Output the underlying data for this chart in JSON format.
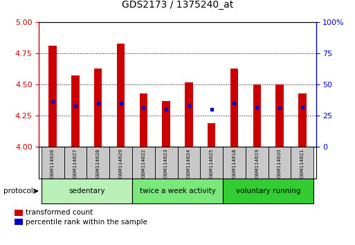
{
  "title": "GDS2173 / 1375240_at",
  "samples": [
    "GSM114626",
    "GSM114627",
    "GSM114628",
    "GSM114629",
    "GSM114622",
    "GSM114623",
    "GSM114624",
    "GSM114625",
    "GSM114618",
    "GSM114619",
    "GSM114620",
    "GSM114621"
  ],
  "red_values": [
    4.81,
    4.57,
    4.63,
    4.83,
    4.43,
    4.37,
    4.52,
    4.19,
    4.63,
    4.5,
    4.5,
    4.43
  ],
  "blue_values": [
    4.36,
    4.33,
    4.35,
    4.35,
    4.31,
    4.3,
    4.33,
    4.3,
    4.35,
    4.32,
    4.31,
    4.32
  ],
  "ylim_left": [
    4.0,
    5.0
  ],
  "ylim_right": [
    0,
    100
  ],
  "yticks_left": [
    4.0,
    4.25,
    4.5,
    4.75,
    5.0
  ],
  "yticks_right": [
    0,
    25,
    50,
    75,
    100
  ],
  "group_labels": [
    "sedentary",
    "twice a week activity",
    "voluntary running"
  ],
  "group_starts": [
    0,
    4,
    8
  ],
  "group_ends": [
    4,
    8,
    12
  ],
  "group_colors": [
    "#b8f0b8",
    "#7ae87a",
    "#32cd32"
  ],
  "bar_width": 0.35,
  "red_color": "#cc0000",
  "blue_color": "#0000cc",
  "left_axis_color": "#cc0000",
  "right_axis_color": "#0000cc",
  "tick_label_bg": "#c8c8c8",
  "legend_red": "transformed count",
  "legend_blue": "percentile rank within the sample",
  "protocol_label": "protocol"
}
